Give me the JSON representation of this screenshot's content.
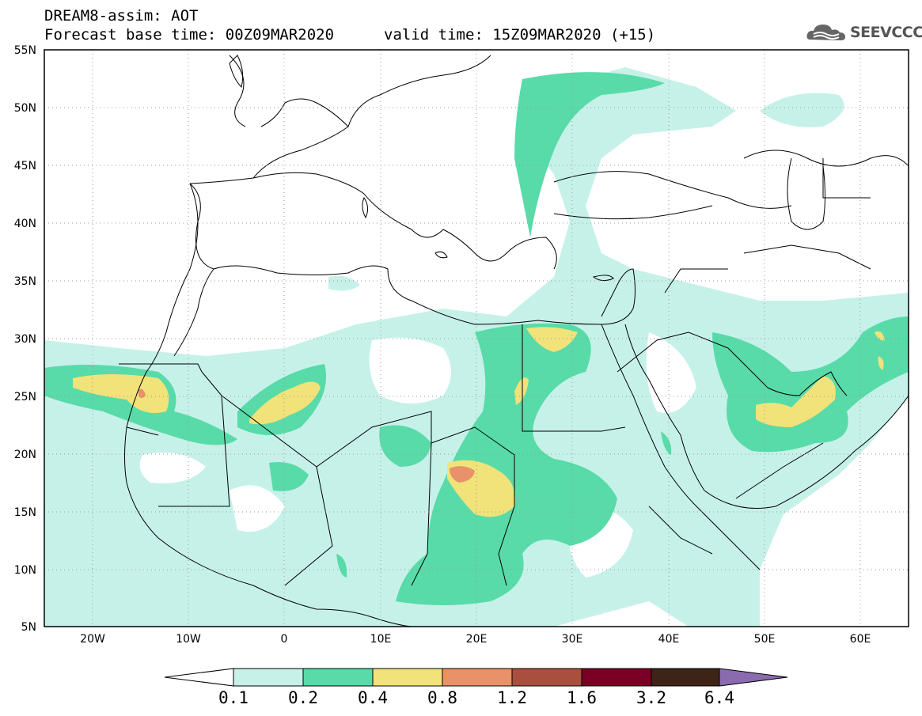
{
  "header": {
    "title": "DREAM8-assim: AOT",
    "base_time": "Forecast base time: 00Z09MAR2020",
    "valid_time": "valid time: 15Z09MAR2020 (+15)",
    "logo_text": "SEEVCCC"
  },
  "map": {
    "lon_range": [
      -25,
      65
    ],
    "lat_range": [
      5,
      55
    ],
    "lat_labels": [
      "55N",
      "50N",
      "45N",
      "40N",
      "35N",
      "30N",
      "25N",
      "20N",
      "15N",
      "10N",
      "5N"
    ],
    "lon_labels": [
      "20W",
      "10W",
      "0",
      "10E",
      "20E",
      "30E",
      "40E",
      "50E",
      "60E"
    ],
    "background": "#ffffff",
    "coastline_color": "#000000"
  },
  "colorbar": {
    "labels": [
      "0.1",
      "0.2",
      "0.4",
      "0.8",
      "1.2",
      "1.6",
      "3.2",
      "6.4"
    ],
    "colors": [
      "#ffffff",
      "#c6f1e9",
      "#58dba9",
      "#f1e27a",
      "#e9926a",
      "#a94f3d",
      "#7a0026",
      "#3d2416",
      "#8a6bb0"
    ]
  },
  "fields": {
    "level_0_1": "#c6f1e9",
    "level_0_2": "#58dba9",
    "level_0_4": "#f1e27a",
    "level_0_8": "#e9926a"
  }
}
